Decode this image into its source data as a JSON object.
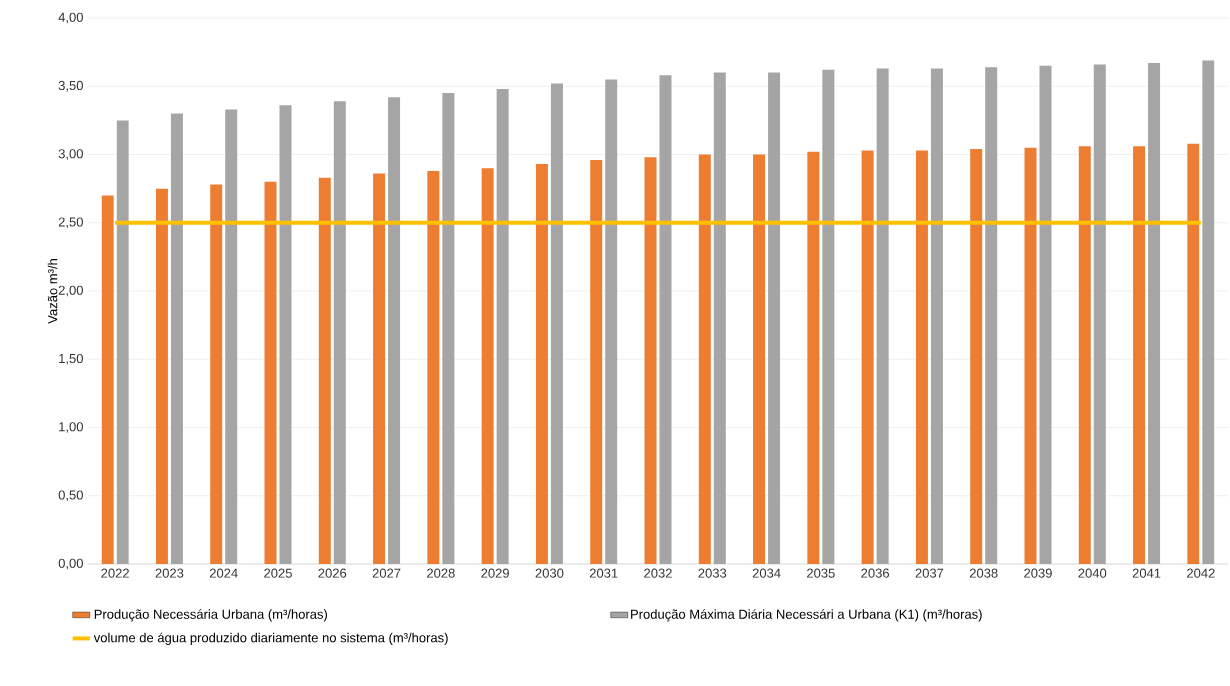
{
  "chart_data": {
    "type": "bar",
    "ylabel": "Vazão m³/h",
    "categories": [
      "2022",
      "2023",
      "2024",
      "2025",
      "2026",
      "2027",
      "2028",
      "2029",
      "2030",
      "2031",
      "2032",
      "2033",
      "2034",
      "2035",
      "2036",
      "2037",
      "2038",
      "2039",
      "2040",
      "2041",
      "2042"
    ],
    "series": [
      {
        "name": "Produção Necessária Urbana (m³/horas)",
        "color": "#ed7d31",
        "values": [
          2.7,
          2.75,
          2.78,
          2.8,
          2.83,
          2.86,
          2.88,
          2.9,
          2.93,
          2.96,
          2.98,
          3.0,
          3.0,
          3.02,
          3.03,
          3.03,
          3.04,
          3.05,
          3.06,
          3.06,
          3.08
        ]
      },
      {
        "name": "Produção Máxima Diária Necessári a Urbana (K1)  (m³/horas)",
        "color": "#a5a5a5",
        "values": [
          3.25,
          3.3,
          3.33,
          3.36,
          3.39,
          3.42,
          3.45,
          3.48,
          3.52,
          3.55,
          3.58,
          3.6,
          3.6,
          3.62,
          3.63,
          3.63,
          3.64,
          3.65,
          3.66,
          3.67,
          3.69
        ]
      },
      {
        "name": "volume de água produzido diariamente no sistema (m³/horas)",
        "type": "line",
        "color": "#ffc000",
        "values": [
          2.5,
          2.5,
          2.5,
          2.5,
          2.5,
          2.5,
          2.5,
          2.5,
          2.5,
          2.5,
          2.5,
          2.5,
          2.5,
          2.5,
          2.5,
          2.5,
          2.5,
          2.5,
          2.5,
          2.5,
          2.5
        ]
      }
    ],
    "ylim": [
      0,
      4
    ],
    "yticks": [
      {
        "value": 0,
        "label": "0,00"
      },
      {
        "value": 0.5,
        "label": "0,50"
      },
      {
        "value": 1,
        "label": "1,00"
      },
      {
        "value": 1.5,
        "label": "1,50"
      },
      {
        "value": 2,
        "label": "2,00"
      },
      {
        "value": 2.5,
        "label": "2,50"
      },
      {
        "value": 3,
        "label": "3,00"
      },
      {
        "value": 3.5,
        "label": "3,50"
      },
      {
        "value": 4,
        "label": "4,00"
      }
    ],
    "grid": "y",
    "legend": "bottom"
  }
}
